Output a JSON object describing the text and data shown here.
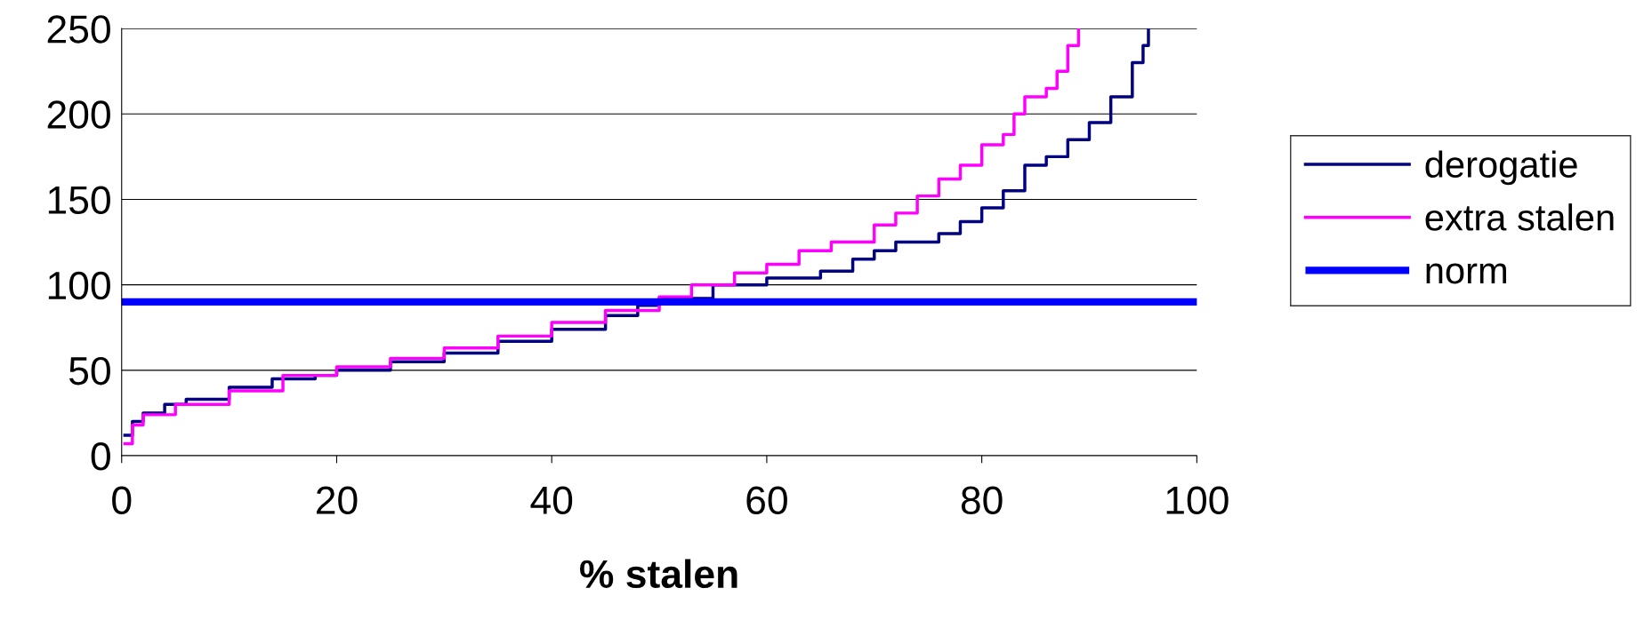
{
  "chart_data": {
    "type": "step",
    "xlabel": "% stalen",
    "xlim": [
      0,
      100
    ],
    "xticks": [
      0,
      20,
      40,
      60,
      80,
      100
    ],
    "ylim": [
      0,
      250
    ],
    "yticks": [
      0,
      50,
      100,
      150,
      200,
      250
    ],
    "grid": "y",
    "legend": "right",
    "series": [
      {
        "name": "derogatie",
        "color": "#000080",
        "x": [
          0.3,
          1,
          2,
          4,
          6,
          10,
          14,
          18,
          20,
          25,
          30,
          35,
          40,
          45,
          48,
          50,
          55,
          60,
          65,
          68,
          70,
          72,
          76,
          78,
          80,
          82,
          84,
          86,
          88,
          90,
          92,
          94,
          95,
          95.5
        ],
        "values": [
          12,
          20,
          25,
          30,
          33,
          40,
          45,
          47,
          50,
          55,
          60,
          67,
          74,
          82,
          88,
          92,
          100,
          104,
          108,
          115,
          120,
          125,
          130,
          137,
          145,
          155,
          170,
          175,
          185,
          195,
          210,
          230,
          240,
          250
        ]
      },
      {
        "name": "extra stalen",
        "color": "#ff00ff",
        "x": [
          0.3,
          1,
          2,
          5,
          10,
          15,
          20,
          25,
          30,
          35,
          40,
          45,
          50,
          53,
          57,
          60,
          63,
          66,
          70,
          72,
          74,
          76,
          78,
          80,
          82,
          83,
          84,
          86,
          87,
          88,
          89
        ],
        "values": [
          7,
          18,
          24,
          30,
          38,
          47,
          52,
          57,
          63,
          70,
          78,
          85,
          93,
          100,
          107,
          112,
          120,
          125,
          135,
          142,
          152,
          162,
          170,
          182,
          188,
          200,
          210,
          215,
          225,
          240,
          250
        ]
      },
      {
        "name": "norm",
        "color": "#0000ff",
        "type": "line",
        "x": [
          0,
          100
        ],
        "values": [
          90,
          90
        ]
      }
    ]
  }
}
